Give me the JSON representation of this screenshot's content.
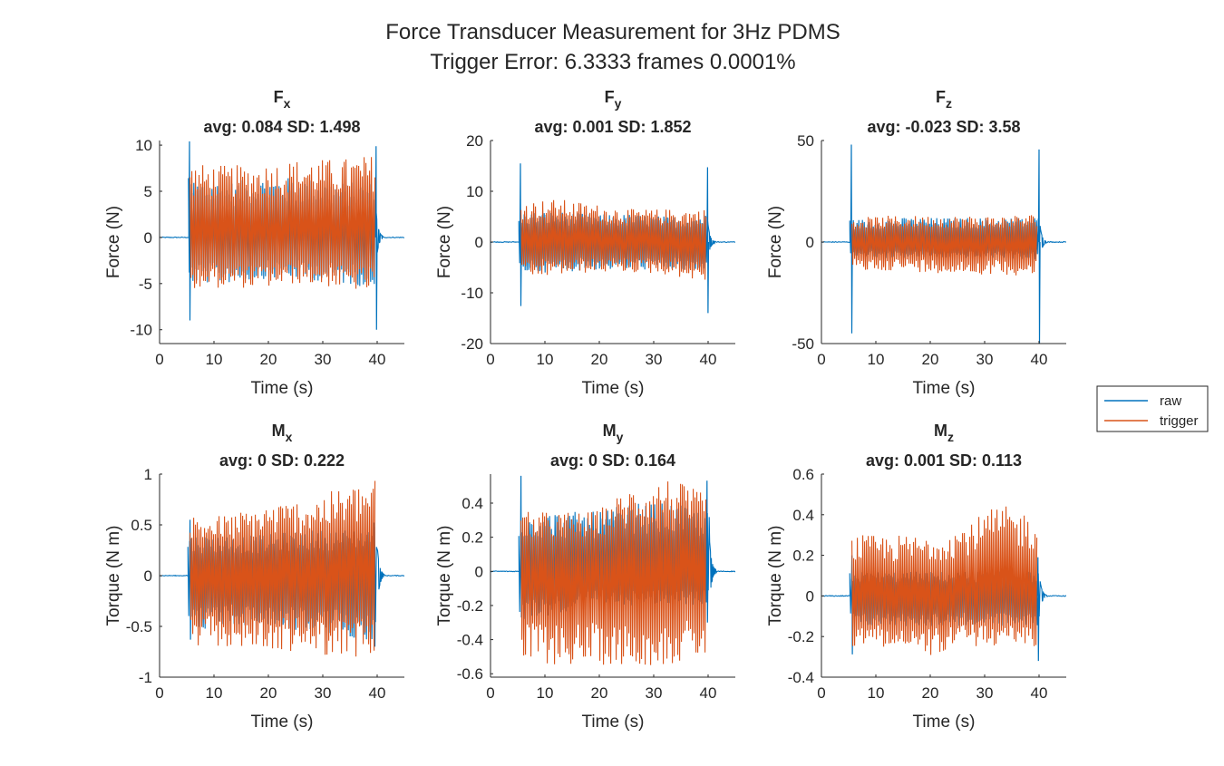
{
  "figure": {
    "title_line1": "Force Transducer Measurement for 3Hz PDMS",
    "title_line2": "Trigger Error: 6.3333 frames 0.0001%"
  },
  "legend": {
    "placement": "right",
    "entries": [
      {
        "label": "raw",
        "color": "#0072BD"
      },
      {
        "label": "trigger",
        "color": "#D95319"
      }
    ]
  },
  "chart_data": [
    {
      "type": "line",
      "title_main": "F",
      "title_sub": "x",
      "stats": "avg: 0.084 SD: 1.498",
      "xlabel": "Time (s)",
      "ylabel": "Force (N)",
      "xlim": [
        0,
        45
      ],
      "ylim": [
        -11.5,
        10.5
      ],
      "xticks": [
        0,
        10,
        20,
        30,
        40
      ],
      "xticklabels": [
        "0",
        "10",
        "20",
        "30",
        "40"
      ],
      "yticks": [
        -10,
        -5,
        0,
        5,
        10
      ],
      "yticklabels": [
        "-10",
        "-5",
        "0",
        "5",
        "10"
      ],
      "series": [
        {
          "name": "raw",
          "color": "#0072BD",
          "active_start": 5.3,
          "active_end": 39.7,
          "spike_at": [
            5.5,
            39.8
          ],
          "spike_max": 10.4,
          "spike_min": -10.0,
          "envelope_max": [
            6.5,
            6.0,
            6.5,
            6.5,
            6.0,
            6.0
          ],
          "envelope_min": [
            -5.0,
            -5.0,
            -4.5,
            -4.5,
            -5.0,
            -5.5
          ]
        },
        {
          "name": "trigger",
          "color": "#D95319",
          "active_start": 5.6,
          "active_end": 39.6,
          "envelope_max": [
            8.0,
            7.8,
            8.0,
            8.5,
            8.5,
            9.0
          ],
          "envelope_min": [
            -5.5,
            -5.5,
            -5.5,
            -5.0,
            -5.5,
            -6.0
          ]
        }
      ]
    },
    {
      "type": "line",
      "title_main": "F",
      "title_sub": "y",
      "stats": "avg: 0.001 SD: 1.852",
      "xlabel": "Time (s)",
      "ylabel": "Force (N)",
      "xlim": [
        0,
        45
      ],
      "ylim": [
        -20,
        20
      ],
      "xticks": [
        0,
        10,
        20,
        30,
        40
      ],
      "xticklabels": [
        "0",
        "10",
        "20",
        "30",
        "40"
      ],
      "yticks": [
        -20,
        -10,
        0,
        10,
        20
      ],
      "yticklabels": [
        "-20",
        "-10",
        "0",
        "10",
        "20"
      ],
      "series": [
        {
          "name": "raw",
          "color": "#0072BD",
          "active_start": 5.2,
          "active_end": 40.0,
          "spike_at": [
            5.5,
            39.9
          ],
          "spike_max": 15.5,
          "spike_min": -14.0,
          "envelope_max": [
            6.0,
            6.0,
            5.5,
            5.5,
            5.0,
            5.5
          ],
          "envelope_min": [
            -6.0,
            -6.0,
            -5.5,
            -5.5,
            -5.5,
            -6.5
          ]
        },
        {
          "name": "trigger",
          "color": "#D95319",
          "active_start": 5.6,
          "active_end": 39.6,
          "envelope_max": [
            8.0,
            8.5,
            7.5,
            6.5,
            6.5,
            6.5
          ],
          "envelope_min": [
            -7.5,
            -6.5,
            -6.0,
            -6.0,
            -6.5,
            -8.0
          ]
        }
      ]
    },
    {
      "type": "line",
      "title_main": "F",
      "title_sub": "z",
      "stats": "avg: -0.023 SD: 3.58",
      "xlabel": "Time (s)",
      "ylabel": "Force (N)",
      "xlim": [
        0,
        45
      ],
      "ylim": [
        -50,
        50
      ],
      "xticks": [
        0,
        10,
        20,
        30,
        40
      ],
      "xticklabels": [
        "0",
        "10",
        "20",
        "30",
        "40"
      ],
      "yticks": [
        -50,
        0,
        50
      ],
      "yticklabels": [
        "-50",
        "0",
        "50"
      ],
      "series": [
        {
          "name": "raw",
          "color": "#0072BD",
          "active_start": 5.2,
          "active_end": 40.2,
          "spike_at": [
            5.5,
            40.0
          ],
          "spike_max": 48.0,
          "spike_min": -50.0,
          "envelope_max": [
            11.0,
            12.0,
            12.0,
            12.0,
            12.0,
            12.5
          ],
          "envelope_min": [
            -7.0,
            -8.0,
            -8.0,
            -8.0,
            -8.0,
            -9.0
          ]
        },
        {
          "name": "trigger",
          "color": "#D95319",
          "active_start": 5.6,
          "active_end": 39.6,
          "envelope_max": [
            12.0,
            13.0,
            13.0,
            13.0,
            13.0,
            14.0
          ],
          "envelope_min": [
            -15.0,
            -14.0,
            -15.0,
            -16.0,
            -16.0,
            -17.0
          ]
        }
      ]
    },
    {
      "type": "line",
      "title_main": "M",
      "title_sub": "x",
      "stats": "avg: 0 SD: 0.222",
      "xlabel": "Time (s)",
      "ylabel": "Torque (N m)",
      "xlim": [
        0,
        45
      ],
      "ylim": [
        -1,
        1
      ],
      "xticks": [
        0,
        10,
        20,
        30,
        40
      ],
      "xticklabels": [
        "0",
        "10",
        "20",
        "30",
        "40"
      ],
      "yticks": [
        -1,
        -0.5,
        0,
        0.5,
        1
      ],
      "yticklabels": [
        "-1",
        "-0.5",
        "0",
        "0.5",
        "1"
      ],
      "series": [
        {
          "name": "raw",
          "color": "#0072BD",
          "active_start": 5.2,
          "active_end": 40.0,
          "spike_at": [
            5.6,
            39.5
          ],
          "spike_max": 0.55,
          "spike_min": -0.7,
          "envelope_max": [
            0.4,
            0.4,
            0.4,
            0.45,
            0.45,
            0.5
          ],
          "envelope_min": [
            -0.55,
            -0.5,
            -0.5,
            -0.55,
            -0.6,
            -0.65
          ]
        },
        {
          "name": "trigger",
          "color": "#D95319",
          "active_start": 5.6,
          "active_end": 39.6,
          "envelope_max": [
            0.6,
            0.6,
            0.7,
            0.75,
            0.85,
            0.95
          ],
          "envelope_min": [
            -0.75,
            -0.7,
            -0.75,
            -0.75,
            -0.8,
            -0.8
          ]
        }
      ]
    },
    {
      "type": "line",
      "title_main": "M",
      "title_sub": "y",
      "stats": "avg: 0 SD: 0.164",
      "xlabel": "Time (s)",
      "ylabel": "Torque (N m)",
      "xlim": [
        0,
        45
      ],
      "ylim": [
        -0.62,
        0.57
      ],
      "xticks": [
        0,
        10,
        20,
        30,
        40
      ],
      "xticklabels": [
        "0",
        "10",
        "20",
        "30",
        "40"
      ],
      "yticks": [
        -0.6,
        -0.4,
        -0.2,
        0,
        0.2,
        0.4
      ],
      "yticklabels": [
        "-0.6",
        "-0.4",
        "-0.2",
        "0",
        "0.2",
        "0.4"
      ],
      "series": [
        {
          "name": "raw",
          "color": "#0072BD",
          "active_start": 5.2,
          "active_end": 40.2,
          "spike_at": [
            5.6,
            39.8
          ],
          "spike_max": 0.56,
          "spike_min": -0.3,
          "envelope_max": [
            0.35,
            0.35,
            0.35,
            0.4,
            0.4,
            0.35
          ],
          "envelope_min": [
            -0.3,
            -0.25,
            -0.2,
            -0.2,
            -0.2,
            -0.2
          ]
        },
        {
          "name": "trigger",
          "color": "#D95319",
          "active_start": 5.6,
          "active_end": 39.6,
          "envelope_max": [
            0.35,
            0.35,
            0.35,
            0.5,
            0.55,
            0.45
          ],
          "envelope_min": [
            -0.55,
            -0.55,
            -0.55,
            -0.55,
            -0.55,
            -0.5
          ]
        }
      ]
    },
    {
      "type": "line",
      "title_main": "M",
      "title_sub": "z",
      "stats": "avg: 0.001 SD: 0.113",
      "xlabel": "Time (s)",
      "ylabel": "Torque (N m)",
      "xlim": [
        0,
        45
      ],
      "ylim": [
        -0.4,
        0.6
      ],
      "xticks": [
        0,
        10,
        20,
        30,
        40
      ],
      "xticklabels": [
        "0",
        "10",
        "20",
        "30",
        "40"
      ],
      "yticks": [
        -0.4,
        -0.2,
        0,
        0.2,
        0.4,
        0.6
      ],
      "yticklabels": [
        "-0.4",
        "-0.2",
        "0",
        "0.2",
        "0.4",
        "0.6"
      ],
      "series": [
        {
          "name": "raw",
          "color": "#0072BD",
          "active_start": 5.2,
          "active_end": 40.2,
          "spike_at": [
            5.6,
            39.8
          ],
          "spike_max": 0.2,
          "spike_min": -0.32,
          "envelope_max": [
            0.12,
            0.12,
            0.12,
            0.12,
            0.12,
            0.12
          ],
          "envelope_min": [
            -0.15,
            -0.15,
            -0.15,
            -0.15,
            -0.15,
            -0.15
          ]
        },
        {
          "name": "trigger",
          "color": "#D95319",
          "active_start": 5.6,
          "active_end": 39.6,
          "envelope_max": [
            0.3,
            0.3,
            0.3,
            0.35,
            0.45,
            0.4
          ],
          "envelope_min": [
            -0.25,
            -0.25,
            -0.3,
            -0.25,
            -0.25,
            -0.25
          ]
        }
      ]
    }
  ]
}
